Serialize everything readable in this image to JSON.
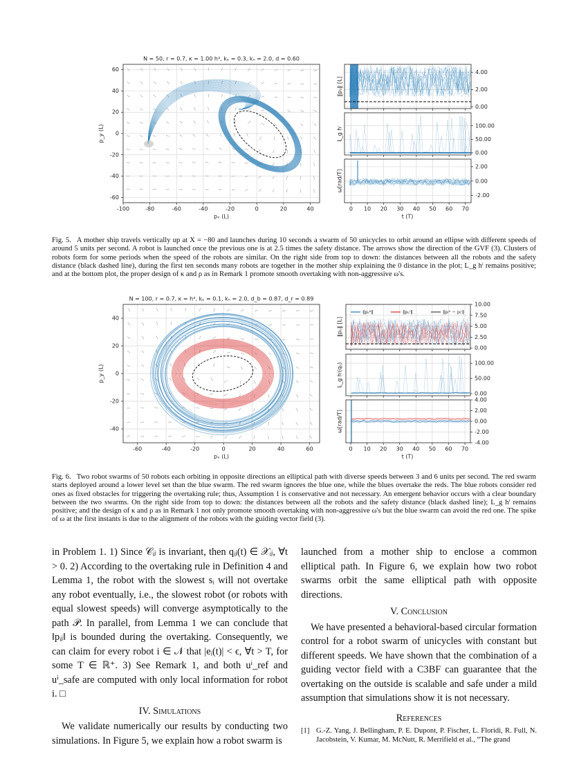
{
  "figure5": {
    "left": {
      "title": "N = 50, r = 0.7, κ = 1.00 h³, kₑ = 0.3, kₙ = 2.0, d = 0.60",
      "xlabel": "pₓ (L)",
      "ylabel": "p_y (L)",
      "xlim": [
        -100,
        47
      ],
      "ylim": [
        -65,
        65
      ],
      "xticks": [
        -100,
        -80,
        -60,
        -40,
        -20,
        0,
        20,
        40
      ],
      "yticks": [
        -60,
        -40,
        -20,
        0,
        20,
        40,
        60
      ]
    },
    "right": {
      "xlabel": "t (T)",
      "xlim": [
        -4,
        73.5
      ],
      "xticks": [
        0,
        10,
        20,
        30,
        40,
        50,
        60,
        70
      ],
      "panels": [
        {
          "ylabel": "‖pᵢⱼ‖ [L]",
          "ylim": [
            -0.2,
            4.9
          ],
          "yticks": [
            {
              "value": 0,
              "label": "0.00"
            },
            {
              "value": 2,
              "label": "2.00"
            },
            {
              "value": 4,
              "label": "4.00"
            }
          ]
        },
        {
          "ylabel": "L_g hⁱ",
          "ylim": [
            -8,
            148
          ],
          "yticks": [
            {
              "value": 0,
              "label": "0.00"
            },
            {
              "value": 50,
              "label": "50.00"
            },
            {
              "value": 100,
              "label": "100.00"
            }
          ]
        },
        {
          "ylabel": "ω[rad/T]",
          "ylim": [
            -3,
            3.05
          ],
          "yticks": [
            {
              "value": -2,
              "label": "-2.00"
            },
            {
              "value": 0,
              "label": "0.00"
            },
            {
              "value": 2,
              "label": "2.00"
            }
          ]
        }
      ]
    },
    "caption_label": "Fig. 5.",
    "caption": "A mother ship travels vertically up at X = −80 and launches during 10 seconds a swarm of 50 unicycles to orbit around an ellipse with different speeds of around 5 units per second. A robot is launched once the previous one is at 2.5 times the safety distance. The arrows show the direction of the GVF (3). Clusters of robots form for some periods when the speed of the robots are similar. On the right side from top to down: the distances between all the robots and the safety distance (black dashed line), during the first ten seconds many robots are together in the mother ship explaining the 0 distance in the plot; L_g hⁱ remains positive; and at the bottom plot, the proper design of κ and ρ as in Remark 1 promote smooth overtaking with non-aggressive ω's."
  },
  "figure6": {
    "left": {
      "title": "N = 100, r = 0.7, κ = h³, kₑ = 0.1, kₙ = 2.0, d_b = 0.87, d_r = 0.89",
      "xlabel": "pₓ (L)",
      "ylabel": "p_y (L)",
      "xlim": [
        -70,
        67
      ],
      "ylim": [
        -50,
        50
      ],
      "xticks": [
        -60,
        -40,
        -20,
        0,
        20,
        40,
        60
      ],
      "yticks": [
        -40,
        -20,
        0,
        20,
        40
      ]
    },
    "right": {
      "xlabel": "t (T)",
      "xlim": [
        -3,
        73.4
      ],
      "xticks": [
        0,
        10,
        20,
        30,
        40,
        50,
        60,
        70
      ],
      "legend": [
        "‖pᵢⱼᵇ‖",
        "‖pᵢⱼʳ‖",
        "‖pᵢᵇ − pⱼʳ‖"
      ],
      "panels": [
        {
          "ylabel": "‖pᵢⱼ‖ [L]",
          "ylim": [
            -0.3,
            10
          ],
          "yticks": [
            {
              "value": 0,
              "label": "0.00"
            },
            {
              "value": 2.5,
              "label": "2.50"
            },
            {
              "value": 5,
              "label": "5.00"
            },
            {
              "value": 7.5,
              "label": "7.50"
            },
            {
              "value": 10,
              "label": "10.00"
            }
          ]
        },
        {
          "ylabel": "L_g hⁱ(qᵢⱼ)",
          "ylim": [
            -7,
            130
          ],
          "yticks": [
            {
              "value": 0,
              "label": "0.00"
            },
            {
              "value": 50,
              "label": "50.00"
            },
            {
              "value": 100,
              "label": "100.00"
            }
          ]
        },
        {
          "ylabel": "ω[rad/T]",
          "ylim": [
            -4,
            4
          ],
          "yticks": [
            {
              "value": -4,
              "label": "-4.00"
            },
            {
              "value": -2,
              "label": "-2.00"
            },
            {
              "value": 0,
              "label": "0.00"
            },
            {
              "value": 2,
              "label": "2.00"
            },
            {
              "value": 4,
              "label": "4.00"
            }
          ]
        }
      ]
    },
    "caption_label": "Fig. 6.",
    "caption": "Two robot swarms of 50 robots each orbiting in opposite directions an elliptical path with diverse speeds between 3 and 6 units per second. The red swarm starts deployed around a lower level set than the blue swarm. The red swarm ignores the blue one, while the blues overtake the reds. The blue robots consider red ones as fixed obstacles for triggering the overtaking rule; thus, Assumption 1 is conservative and not necessary. An emergent behavior occurs with a clear boundary between the two swarms. On the right side from top to down: the distances between all the robots and the safety distance (black dashed line); L_g hⁱ remains positive; and the design of κ and ρ as in Remark 1 not only promote smooth overtaking with non-aggressive ω's but the blue swarm can avoid the red one. The spike of ω at the first instants is due to the alignment of the robots with the guiding vector field (3)."
  },
  "body": {
    "left": {
      "paragraph1": "in Problem 1. 1) Since 𝒞ᵢⱼ is invariant, then qᵢⱼ(t) ∈ 𝒳ᵢⱼ, ∀t > 0. 2) According to the overtaking rule in Definition 4 and Lemma 1, the robot with the slowest sᵢ will not overtake any robot eventually, i.e., the slowest robot (or robots with equal slowest speeds) will converge asymptotically to the path 𝒫. In parallel, from Lemma 1 we can conclude that ‖pᵢⱼ‖ is bounded during the overtaking. Consequently, we can claim for every robot i ∈ 𝒩 that |eᵢ(t)| < ϵ, ∀t > T, for some T ∈ ℝ⁺. 3) See Remark 1, and both uⁱ_ref and uⁱ_safe are computed with only local information for robot i. □",
      "heading": "IV. Simulations",
      "paragraph2": "We validate numerically our results by conducting two simulations. In Figure 5, we explain how a robot swarm is"
    },
    "right": {
      "paragraph1": "launched from a mother ship to enclose a common elliptical path. In Figure 6, we explain how two robot swarms orbit the same elliptical path with opposite directions.",
      "heading": "V. Conclusion",
      "paragraph2": "We have presented a behavioral-based circular formation control for a robot swarm of unicycles with constant but different speeds. We have shown that the combination of a guiding vector field with a C3BF can guarantee that the overtaking on the outside is scalable and safe under a mild assumption that simulations show it is not necessary.",
      "references_heading": "References",
      "reference1_label": "[1]",
      "reference1": "G.-Z. Yang, J. Bellingham, P. E. Dupont, P. Fischer, L. Floridi, R. Full, N. Jacobstein, V. Kumar, M. McNutt, R. Merrifield et al., “The grand"
    }
  }
}
